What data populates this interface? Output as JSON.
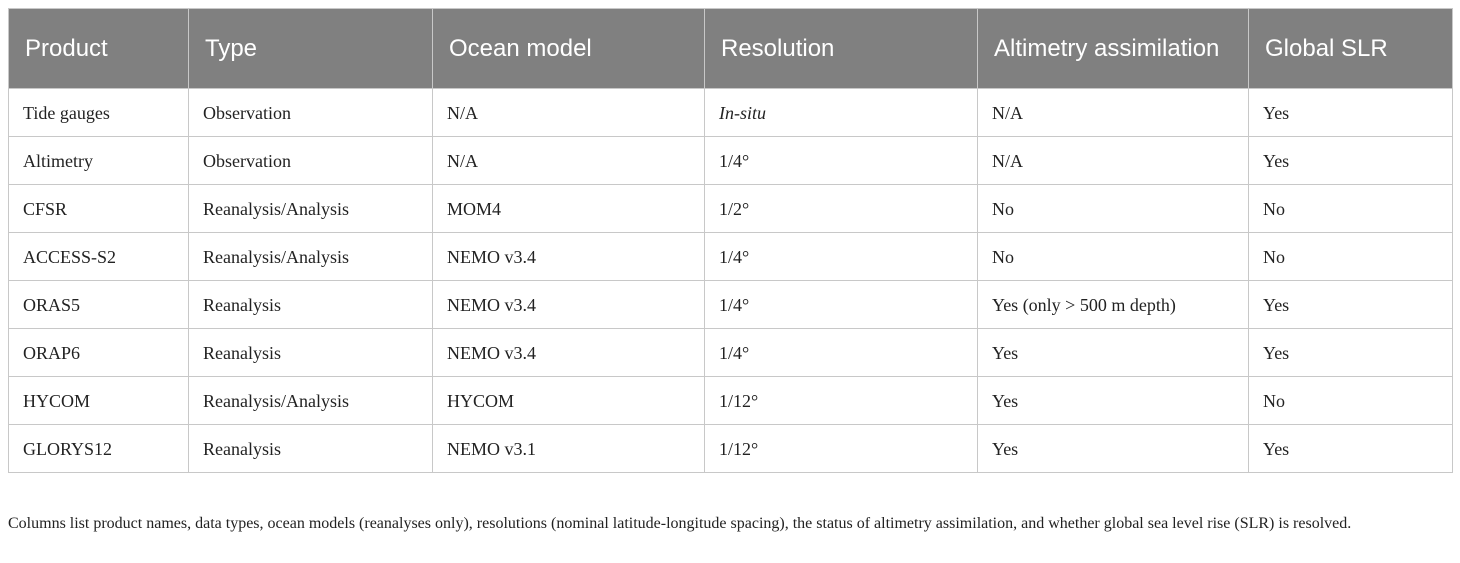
{
  "table": {
    "header": [
      "Product",
      "Type",
      "Ocean model",
      "Resolution",
      "Altimetry assimilation",
      "Global SLR"
    ],
    "rows": [
      [
        "Tide gauges",
        "Observation",
        "N/A",
        "In-situ",
        "N/A",
        "Yes"
      ],
      [
        "Altimetry",
        "Observation",
        "N/A",
        "1/4°",
        "N/A",
        "Yes"
      ],
      [
        "CFSR",
        "Reanalysis/Analysis",
        "MOM4",
        "1/2°",
        "No",
        "No"
      ],
      [
        "ACCESS-S2",
        "Reanalysis/Analysis",
        "NEMO v3.4",
        "1/4°",
        "No",
        "No"
      ],
      [
        "ORAS5",
        "Reanalysis",
        "NEMO v3.4",
        "1/4°",
        "Yes (only > 500 m depth)",
        "Yes"
      ],
      [
        "ORAP6",
        "Reanalysis",
        "NEMO v3.4",
        "1/4°",
        "Yes",
        "Yes"
      ],
      [
        "HYCOM",
        "Reanalysis/Analysis",
        "HYCOM",
        "1/12°",
        "Yes",
        "No"
      ],
      [
        "GLORYS12",
        "Reanalysis",
        "NEMO v3.1",
        "1/12°",
        "Yes",
        "Yes"
      ]
    ],
    "footnote": "Columns list product names, data types, ocean models (reanalyses only), resolutions (nominal latitude-longitude spacing), the status of altimetry assimilation, and whether global sea level rise (SLR) is resolved."
  }
}
